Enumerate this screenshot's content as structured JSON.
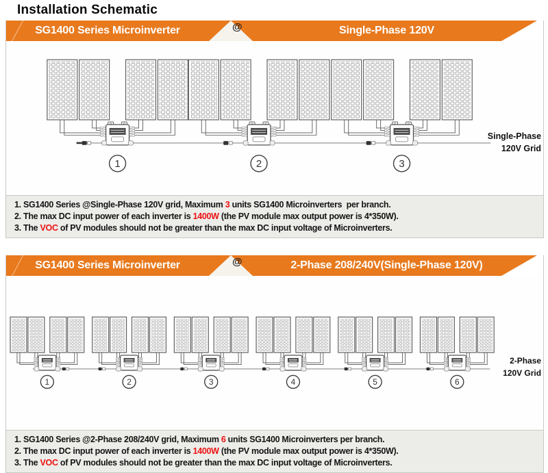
{
  "title": "Installation Schematic",
  "colors": {
    "accent_orange": "#E8791D",
    "highlight_red": "#ED1111",
    "notes_bg": "#ECECE9"
  },
  "panels": [
    {
      "header": {
        "left": "SG1400 Series Microinverter",
        "separator": "@",
        "right": "Single-Phase 120V"
      },
      "diagram": {
        "type": "pv-microinverter-branch",
        "size": "large",
        "inverter_count": 3,
        "pv_modules_per_inverter": 4,
        "unit_labels": [
          "1",
          "2",
          "3"
        ],
        "grid_label": [
          "Single-Phase",
          "120V Grid"
        ]
      },
      "notes": [
        [
          {
            "text": "1. SG1400 Series @Single-Phase 120V grid, Maximum "
          },
          {
            "text": "3",
            "highlight": true
          },
          {
            "text": " units SG1400 Microinverters  per branch."
          }
        ],
        [
          {
            "text": "2. The max DC input power of each inverter is "
          },
          {
            "text": "1400W",
            "highlight": true
          },
          {
            "text": " (the PV module max output power is 4*350W)."
          }
        ],
        [
          {
            "text": "3. The "
          },
          {
            "text": "VOC",
            "highlight": true
          },
          {
            "text": " of PV modules should not be greater than the max DC input voltage of Microinverters."
          }
        ]
      ]
    },
    {
      "header": {
        "left": "SG1400 Series Microinverter",
        "separator": "@",
        "right": "2-Phase 208/240V(Single-Phase 120V)"
      },
      "diagram": {
        "type": "pv-microinverter-branch",
        "size": "small",
        "inverter_count": 6,
        "pv_modules_per_inverter": 4,
        "unit_labels": [
          "1",
          "2",
          "3",
          "4",
          "5",
          "6"
        ],
        "grid_label": [
          "2-Phase",
          "120V Grid"
        ]
      },
      "notes": [
        [
          {
            "text": "1. SG1400 Series @2-Phase 208/240V grid, Maximum "
          },
          {
            "text": "6",
            "highlight": true
          },
          {
            "text": " units SG1400 Microinverters per branch."
          }
        ],
        [
          {
            "text": "2. The max DC input power of each inverter is "
          },
          {
            "text": "1400W",
            "highlight": true
          },
          {
            "text": " (the PV module max output power is 4*350W)."
          }
        ],
        [
          {
            "text": "3. The "
          },
          {
            "text": "VOC",
            "highlight": true
          },
          {
            "text": " of PV modules should not be greater than the max DC input voltage of Microinverters."
          }
        ]
      ]
    }
  ]
}
